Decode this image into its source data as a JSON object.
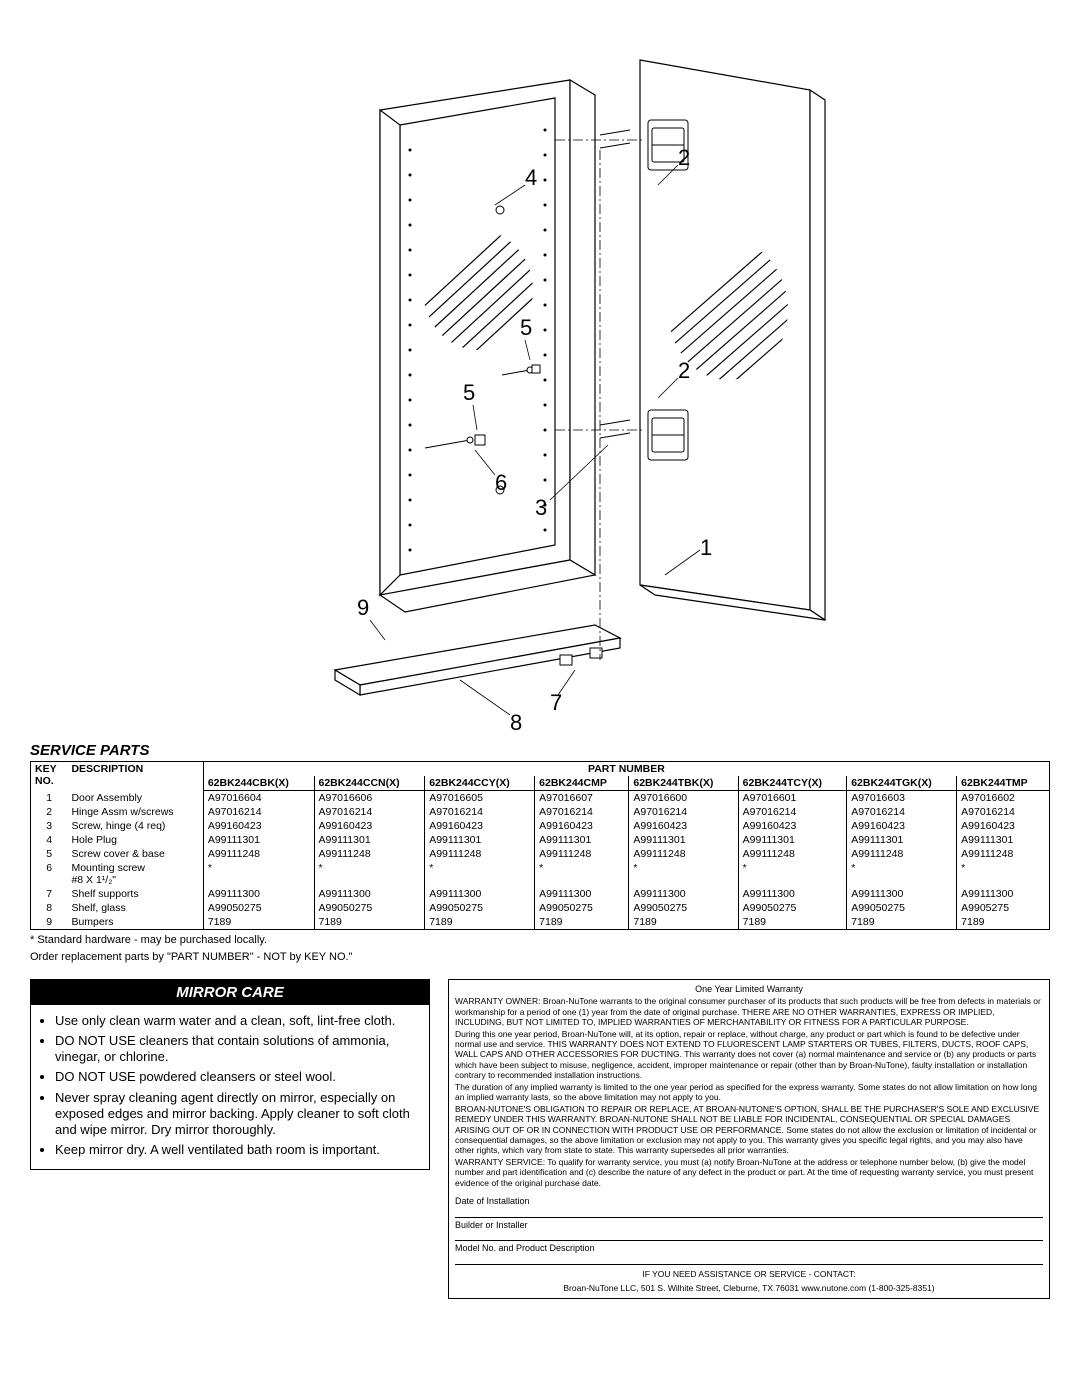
{
  "diagram": {
    "callouts": [
      "1",
      "2",
      "2",
      "3",
      "4",
      "5",
      "5",
      "6",
      "7",
      "8",
      "9"
    ]
  },
  "service_parts_header": "SERVICE PARTS",
  "parts_table": {
    "key_header": "KEY\nNO.",
    "desc_header": "DESCRIPTION",
    "group_header": "PART NUMBER",
    "models": [
      "62BK244CBK(X)",
      "62BK244CCN(X)",
      "62BK244CCY(X)",
      "62BK244CMP",
      "62BK244TBK(X)",
      "62BK244TCY(X)",
      "62BK244TGK(X)",
      "62BK244TMP"
    ],
    "rows": [
      {
        "key": "1",
        "desc": "Door Assembly",
        "parts": [
          "A97016604",
          "A97016606",
          "A97016605",
          "A97016607",
          "A97016600",
          "A97016601",
          "A97016603",
          "A97016602"
        ]
      },
      {
        "key": "2",
        "desc": "Hinge Assm w/screws",
        "parts": [
          "A97016214",
          "A97016214",
          "A97016214",
          "A97016214",
          "A97016214",
          "A97016214",
          "A97016214",
          "A97016214"
        ]
      },
      {
        "key": "3",
        "desc": "Screw, hinge (4 req)",
        "parts": [
          "A99160423",
          "A99160423",
          "A99160423",
          "A99160423",
          "A99160423",
          "A99160423",
          "A99160423",
          "A99160423"
        ]
      },
      {
        "key": "4",
        "desc": "Hole Plug",
        "parts": [
          "A99111301",
          "A99111301",
          "A99111301",
          "A99111301",
          "A99111301",
          "A99111301",
          "A99111301",
          "A99111301"
        ]
      },
      {
        "key": "5",
        "desc": "Screw cover & base",
        "parts": [
          "A99111248",
          "A99111248",
          "A99111248",
          "A99111248",
          "A99111248",
          "A99111248",
          "A99111248",
          "A99111248"
        ]
      },
      {
        "key": "6",
        "desc": "Mounting screw\n#8 X 1¹/₂\"",
        "parts": [
          "*",
          "*",
          "*",
          "*",
          "*",
          "*",
          "*",
          "*"
        ]
      },
      {
        "key": "7",
        "desc": "Shelf supports",
        "parts": [
          "A99111300",
          "A99111300",
          "A99111300",
          "A99111300",
          "A99111300",
          "A99111300",
          "A99111300",
          "A99111300"
        ]
      },
      {
        "key": "8",
        "desc": "Shelf, glass",
        "parts": [
          "A99050275",
          "A99050275",
          "A99050275",
          "A99050275",
          "A99050275",
          "A99050275",
          "A99050275",
          "A9905275"
        ]
      },
      {
        "key": "9",
        "desc": "Bumpers",
        "parts": [
          "7189",
          "7189",
          "7189",
          "7189",
          "7189",
          "7189",
          "7189",
          "7189"
        ]
      }
    ]
  },
  "note_star": "* Standard hardware - may be purchased locally.",
  "note_order": "Order replacement parts by \"PART NUMBER\" - NOT by KEY NO.\"",
  "mirror_care": {
    "title": "MIRROR CARE",
    "items": [
      "Use only  clean warm water and a clean, soft, lint-free cloth.",
      "DO NOT USE cleaners that contain solutions of ammonia, vinegar, or chlorine.",
      "DO NOT USE powdered cleansers or steel wool.",
      "Never spray cleaning agent directly on mirror, especially on exposed edges and mirror backing. Apply cleaner to soft cloth and wipe mirror.  Dry mirror thoroughly.",
      "Keep mirror dry.  A well ventilated bath room is important."
    ]
  },
  "warranty": {
    "title": "One Year Limited Warranty",
    "p1": "WARRANTY OWNER: Broan-NuTone warrants to the original consumer purchaser of its products that such products will be free from defects in materials or workmanship for a period of one (1) year from the date of original purchase. THERE ARE NO OTHER WARRANTIES, EXPRESS OR IMPLIED, INCLUDING, BUT NOT LIMITED TO, IMPLIED WARRANTIES OF MERCHANTABILITY OR FITNESS FOR A PARTICULAR PURPOSE.",
    "p2": "During this one year period, Broan-NuTone will, at its option, repair or replace, without charge, any product or part which is found to be defective under normal use and service. THIS WARRANTY DOES NOT EXTEND TO FLUORESCENT LAMP STARTERS OR TUBES, FILTERS, DUCTS, ROOF CAPS, WALL CAPS AND OTHER ACCESSORIES FOR DUCTING. This warranty does not cover (a) normal maintenance and service or (b) any products or parts which have been subject to misuse, negligence, accident, improper maintenance or repair (other than by Broan-NuTone), faulty installation or installation contrary to recommended installation instructions.",
    "p3": "The duration of any implied warranty is limited to the one year period as specified for the express warranty. Some states do not allow limitation on how long an implied warranty lasts, so the above limitation may not apply to you.",
    "p4": "BROAN-NUTONE'S OBLIGATION TO REPAIR OR REPLACE, AT BROAN-NUTONE'S OPTION, SHALL BE THE PURCHASER'S SOLE AND EXCLUSIVE REMEDY UNDER THIS WARRANTY. BROAN-NUTONE SHALL NOT BE LIABLE FOR INCIDENTAL, CONSEQUENTIAL OR SPECIAL DAMAGES ARISING OUT OF OR IN CONNECTION WITH PRODUCT USE OR PERFORMANCE. Some states do not allow the exclusion or limitation of incidental or consequential damages, so the above limitation or exclusion may not apply to you. This warranty gives you specific legal rights, and you may also have other rights, which vary from state to state. This warranty supersedes all prior warranties.",
    "p5": "WARRANTY SERVICE: To qualify for warranty service, you must (a) notify Broan-NuTone at the address or telephone number below, (b) give the model number and part identification and (c) describe the nature of any defect in the product or part. At the time of requesting warranty service, you must present evidence of the original purchase date.",
    "field1": "Date of Installation",
    "field2": "Builder or Installer",
    "field3": "Model No. and Product Description",
    "assist1": "IF YOU NEED ASSISTANCE OR SERVICE - CONTACT:",
    "assist2": "Broan-NuTone LLC,   501 S. Wilhite Street,  Cleburne, TX  76031    www.nutone.com    (1-800-325-8351)"
  }
}
